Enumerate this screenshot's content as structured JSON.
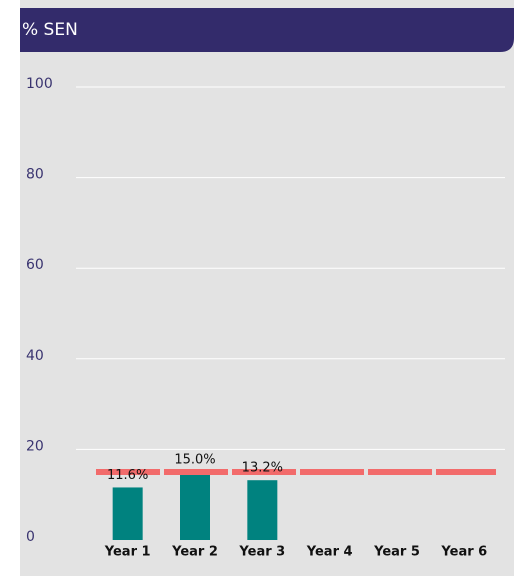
{
  "chart_data": {
    "type": "bar",
    "title": "% SEN",
    "categories": [
      "Year 1",
      "Year 2",
      "Year 3",
      "Year 4",
      "Year 5",
      "Year 6"
    ],
    "values": [
      11.6,
      15.0,
      13.2,
      null,
      null,
      null
    ],
    "value_labels": [
      "11.6%",
      "15.0%",
      "13.2%",
      null,
      null,
      null
    ],
    "color": "#00827f",
    "ylim": [
      0,
      100
    ],
    "yticks": [
      0,
      20,
      40,
      60,
      80,
      100
    ],
    "grid": true,
    "reference_line": {
      "value": 15,
      "color": "#f26b6b"
    }
  }
}
